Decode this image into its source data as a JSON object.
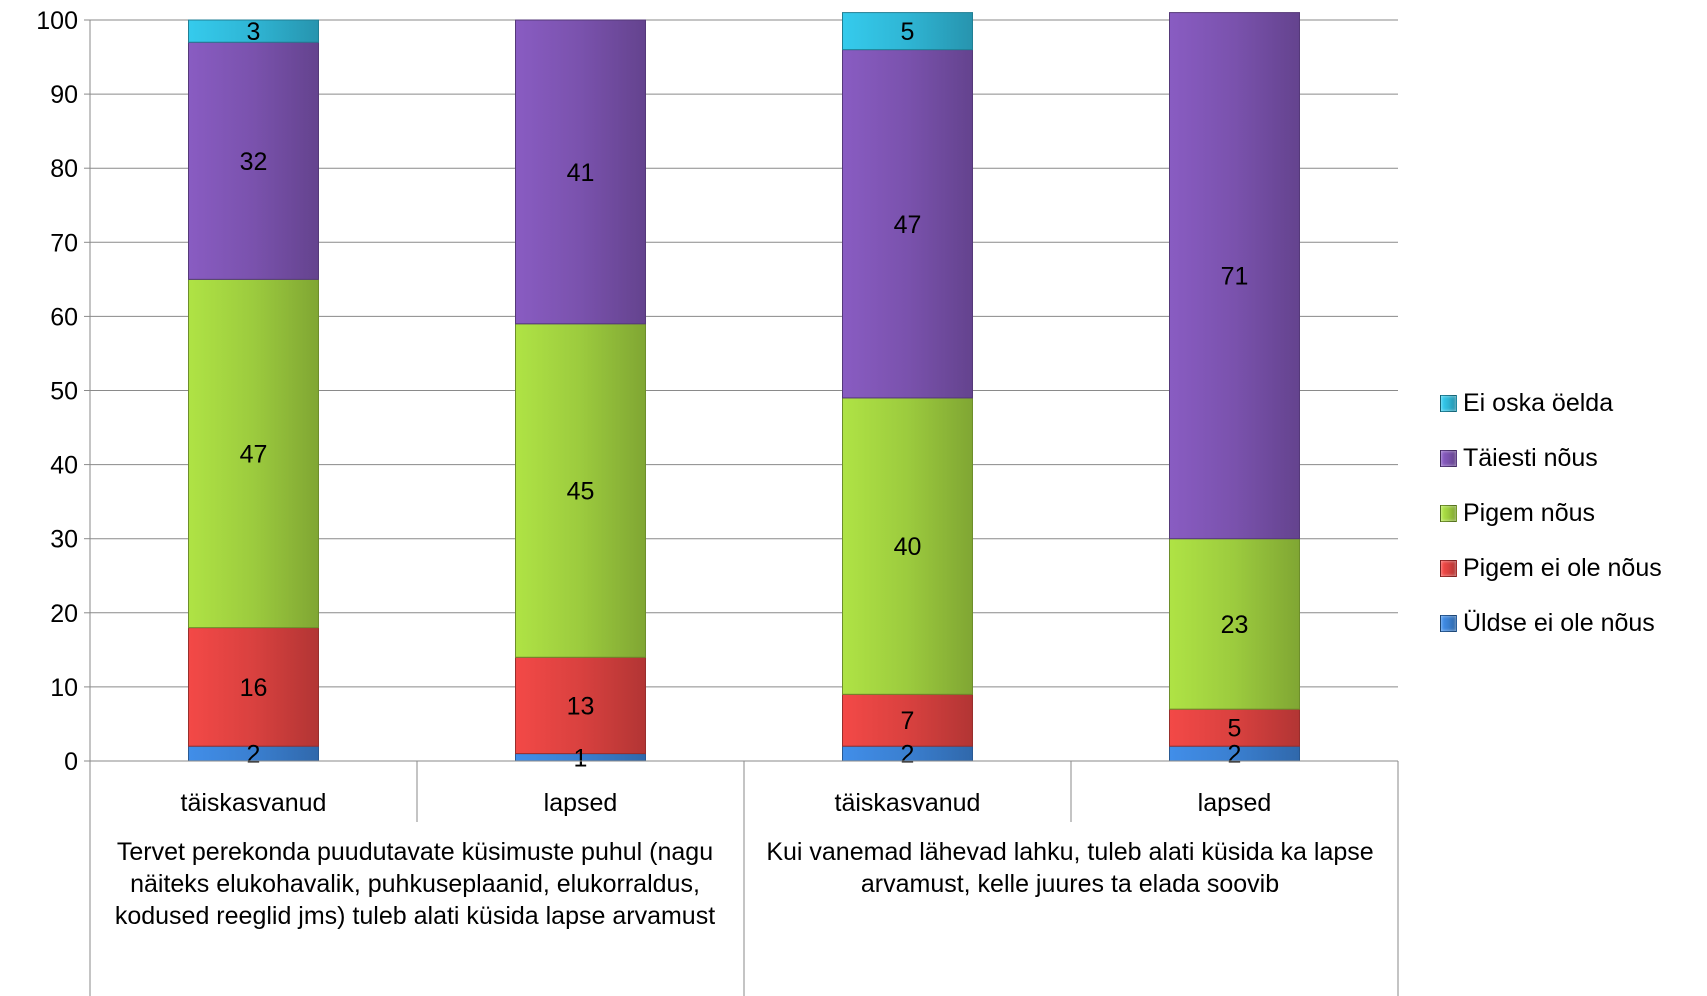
{
  "chart_data": {
    "type": "bar",
    "stacked": true,
    "categories": [
      "täiskasvanud",
      "lapsed",
      "täiskasvanud",
      "lapsed"
    ],
    "groups": [
      "Tervet perekonda puudutavate küsimuste puhul (nagu näiteks elukohavalik, puhkuseplaanid, elukorraldus, kodused reeglid jms) tuleb alati küsida lapse arvamust",
      "Kui vanemad lähevad lahku, tuleb alati küsida ka lapse arvamust, kelle juures ta elada soovib"
    ],
    "series": [
      {
        "name": "Üldse ei ole nõus",
        "color": "#3a7fd0",
        "values": [
          2,
          1,
          2,
          2
        ]
      },
      {
        "name": "Pigem ei ole nõus",
        "color": "#d9413f",
        "values": [
          16,
          13,
          7,
          5
        ]
      },
      {
        "name": "Pigem nõus",
        "color": "#9ccb3e",
        "values": [
          47,
          45,
          40,
          23
        ]
      },
      {
        "name": "Täiesti nõus",
        "color": "#7a52ad",
        "values": [
          32,
          41,
          47,
          71
        ]
      },
      {
        "name": "Ei oska öelda",
        "color": "#2fb5d4",
        "values": [
          3,
          0,
          5,
          0
        ]
      }
    ],
    "ylim": [
      0,
      100
    ],
    "yticks": [
      0,
      10,
      20,
      30,
      40,
      50,
      60,
      70,
      80,
      90,
      100
    ],
    "grid": true,
    "legend_position": "right"
  }
}
